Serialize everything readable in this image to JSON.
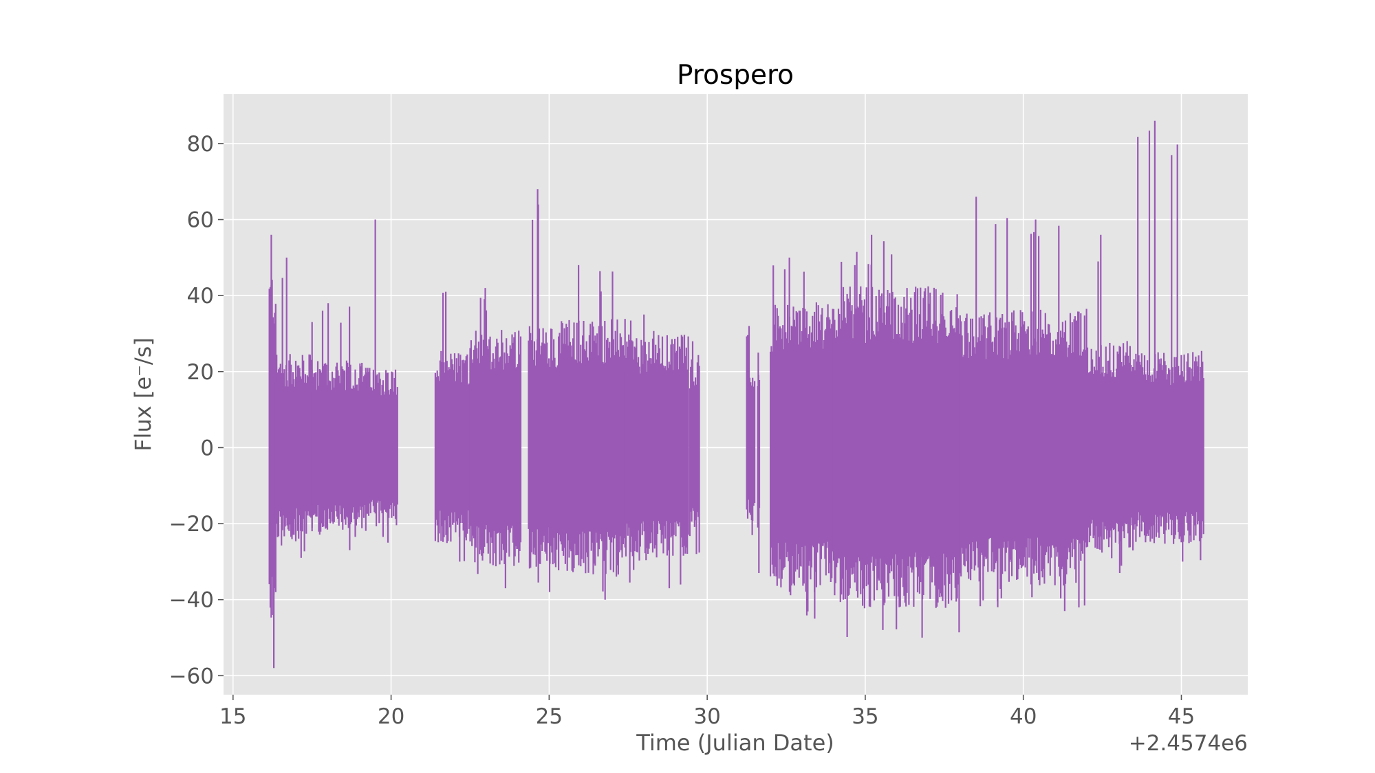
{
  "chart_data": {
    "type": "line",
    "title": "Prospero",
    "xlabel": "Time (Julian Date)",
    "ylabel": "Flux [e⁻/s]",
    "x_offset_label": "+2.4574e6",
    "xlim": [
      14.7,
      47.1
    ],
    "ylim": [
      -65,
      93
    ],
    "x_ticks": [
      15,
      20,
      25,
      30,
      35,
      40,
      45
    ],
    "x_tick_labels": [
      "15",
      "20",
      "25",
      "30",
      "35",
      "40",
      "45"
    ],
    "y_ticks": [
      -60,
      -40,
      -20,
      0,
      20,
      40,
      60,
      80
    ],
    "y_tick_labels": [
      "−60",
      "−40",
      "−20",
      "0",
      "20",
      "40",
      "60",
      "80"
    ],
    "grid": true,
    "background_color": "#e5e5e5",
    "series": [
      {
        "color": "#9a59b5",
        "segments": [
          {
            "x_start": 16.15,
            "x_end": 16.35,
            "y_min": -58,
            "y_max": 56
          },
          {
            "x_start": 16.35,
            "x_end": 17.5,
            "y_min": -29,
            "y_max": 50
          },
          {
            "x_start": 17.5,
            "x_end": 19.2,
            "y_min": -27,
            "y_max": 38
          },
          {
            "x_start": 19.2,
            "x_end": 20.2,
            "y_min": -25,
            "y_max": 60
          },
          {
            "x_start": 21.4,
            "x_end": 22.5,
            "y_min": -30,
            "y_max": 41
          },
          {
            "x_start": 22.5,
            "x_end": 24.1,
            "y_min": -37,
            "y_max": 42
          },
          {
            "x_start": 24.35,
            "x_end": 25.3,
            "y_min": -38,
            "y_max": 68
          },
          {
            "x_start": 25.3,
            "x_end": 27.4,
            "y_min": -40,
            "y_max": 48
          },
          {
            "x_start": 27.4,
            "x_end": 29.4,
            "y_min": -37,
            "y_max": 35
          },
          {
            "x_start": 29.45,
            "x_end": 29.75,
            "y_min": -28,
            "y_max": 28
          },
          {
            "x_start": 31.25,
            "x_end": 31.5,
            "y_min": -23,
            "y_max": 32
          },
          {
            "x_start": 31.6,
            "x_end": 31.65,
            "y_min": -33,
            "y_max": 25
          },
          {
            "x_start": 32.0,
            "x_end": 34.0,
            "y_min": -45,
            "y_max": 50
          },
          {
            "x_start": 34.0,
            "x_end": 38.0,
            "y_min": -50,
            "y_max": 56
          },
          {
            "x_start": 38.0,
            "x_end": 39.7,
            "y_min": -42,
            "y_max": 66
          },
          {
            "x_start": 39.7,
            "x_end": 42.0,
            "y_min": -43,
            "y_max": 60
          },
          {
            "x_start": 42.0,
            "x_end": 43.5,
            "y_min": -33,
            "y_max": 56
          },
          {
            "x_start": 43.5,
            "x_end": 45.7,
            "y_min": -30,
            "y_max": 86
          }
        ]
      }
    ]
  }
}
